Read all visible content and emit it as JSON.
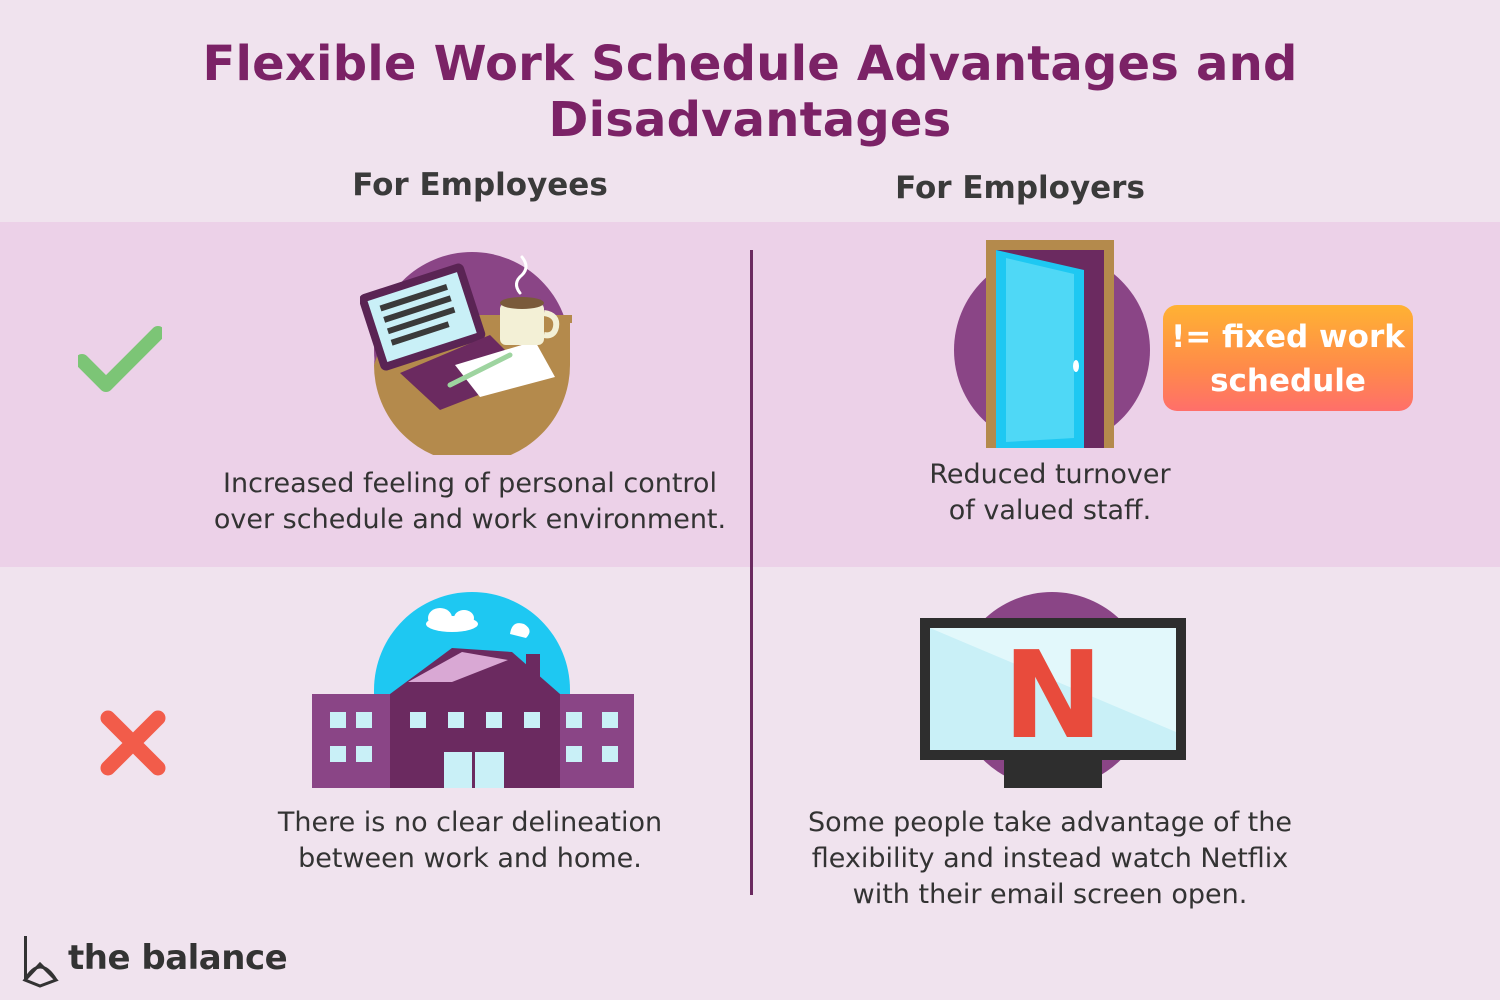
{
  "title": "Flexible Work Schedule Advantages and Disadvantages",
  "columns": {
    "employees": "For Employees",
    "employers": "For Employers"
  },
  "advantages": {
    "employees_caption": [
      "Increased feeling of personal control",
      "over schedule and work environment."
    ],
    "employers_caption": [
      "Reduced turnover",
      "of valued staff."
    ],
    "badge": [
      "!= fixed work",
      "schedule"
    ]
  },
  "disadvantages": {
    "employees_caption": [
      "There is no clear delineation",
      "between work and home."
    ],
    "employers_caption": [
      "Some people take advantage of the",
      "flexibility and instead watch Netflix",
      "with their email screen open."
    ],
    "tv_logo_letter": "N"
  },
  "icons": {
    "advantage_mark": "check-icon",
    "disadvantage_mark": "x-icon"
  },
  "colors": {
    "title": "#7b2266",
    "background": "#f0e3ee",
    "band": "#ecd1e8",
    "check": "#7cc576",
    "cross": "#f25c4a",
    "circle": "#8a4586"
  },
  "brand": {
    "name": "the balance"
  }
}
